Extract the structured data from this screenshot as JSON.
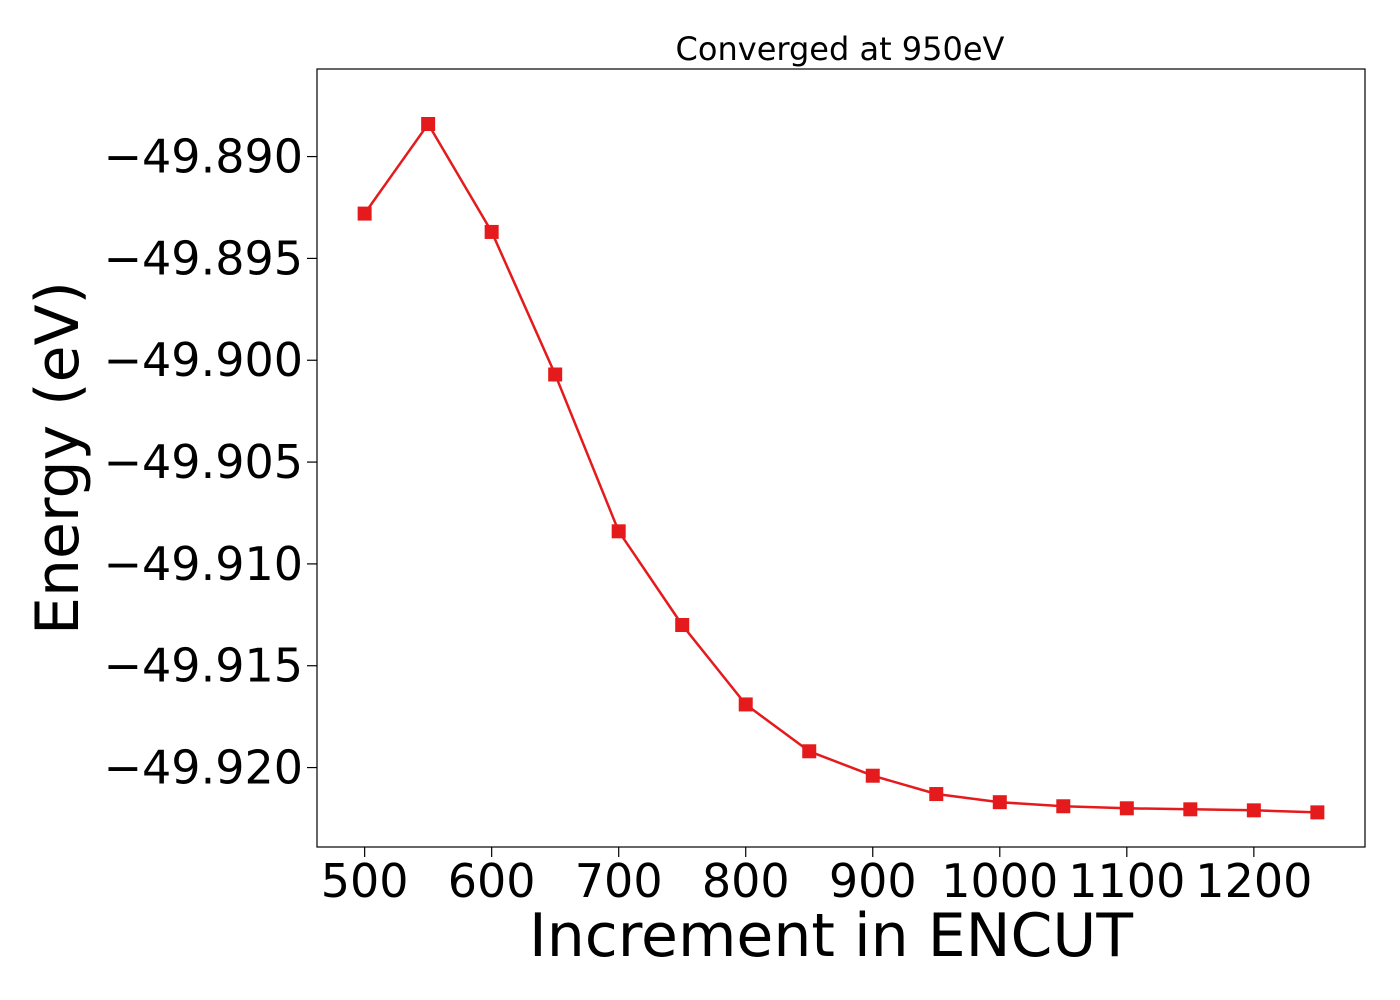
{
  "chart_data": {
    "type": "line",
    "title": "Converged at 950eV",
    "xlabel": "Increment in ENCUT",
    "ylabel": "Energy (eV)",
    "xlim": [
      462.5,
      1287.5
    ],
    "ylim": [
      -49.9239,
      -49.8857
    ],
    "xticks": [
      500,
      600,
      700,
      800,
      900,
      1000,
      1100,
      1200
    ],
    "xtick_labels": [
      "500",
      "600",
      "700",
      "800",
      "900",
      "1000",
      "1100",
      "1200"
    ],
    "yticks": [
      -49.89,
      -49.895,
      -49.9,
      -49.905,
      -49.91,
      -49.915,
      -49.92
    ],
    "ytick_labels": [
      "−49.890",
      "−49.895",
      "−49.900",
      "−49.905",
      "−49.910",
      "−49.915",
      "−49.920"
    ],
    "grid": false,
    "series": [
      {
        "color": "#e41a1c",
        "marker": "square",
        "x": [
          500,
          550,
          600,
          650,
          700,
          750,
          800,
          850,
          900,
          950,
          1000,
          1050,
          1100,
          1150,
          1200,
          1250
        ],
        "y": [
          -49.8928,
          -49.8884,
          -49.8937,
          -49.9007,
          -49.9084,
          -49.913,
          -49.9169,
          -49.9192,
          -49.9204,
          -49.9213,
          -49.9217,
          -49.9219,
          -49.922,
          -49.92205,
          -49.9221,
          -49.9222
        ]
      }
    ]
  }
}
